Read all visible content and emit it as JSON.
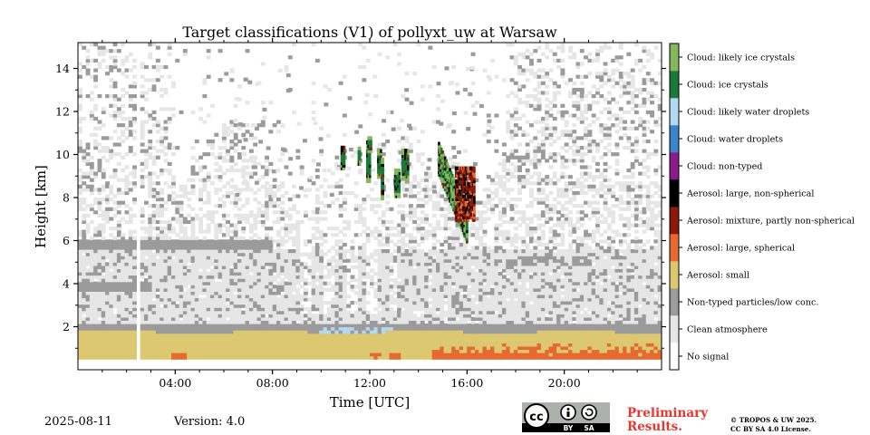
{
  "chart_data": {
    "type": "heatmap",
    "title": "Target classifications (V1) of pollyxt_uw at Warsaw",
    "xlabel": "Time [UTC]",
    "ylabel": "Height [km]",
    "xlim": [
      0,
      24
    ],
    "ylim": [
      0,
      15.2
    ],
    "x_ticks": [
      "04:00",
      "08:00",
      "12:00",
      "16:00",
      "20:00"
    ],
    "x_tick_values": [
      4,
      8,
      12,
      16,
      20
    ],
    "y_ticks": [
      "2",
      "4",
      "6",
      "8",
      "10",
      "12",
      "14"
    ],
    "y_tick_values": [
      2,
      4,
      6,
      8,
      10,
      12,
      14
    ],
    "grid": false,
    "legend_placement": "right colorbar",
    "classes": [
      {
        "label": "No signal",
        "color": "#ffffff"
      },
      {
        "label": "Clean atmosphere",
        "color": "#e6e6e6"
      },
      {
        "label": "Non-typed particles/low conc.",
        "color": "#9b9b9b"
      },
      {
        "label": "Aerosol: small",
        "color": "#dbc870"
      },
      {
        "label": "Aerosol: large, spherical",
        "color": "#e8692f"
      },
      {
        "label": "Aerosol: mixture, partly non-spherical",
        "color": "#8b1a0a"
      },
      {
        "label": "Aerosol: large, non-spherical",
        "color": "#000000"
      },
      {
        "label": "Cloud: non-typed",
        "color": "#8b1a8b"
      },
      {
        "label": "Cloud: water droplets",
        "color": "#3a86c8"
      },
      {
        "label": "Cloud: likely water droplets",
        "color": "#b2d8f2"
      },
      {
        "label": "Cloud: ice crystals",
        "color": "#1a7a3a"
      },
      {
        "label": "Cloud: likely ice crystals",
        "color": "#85b85c"
      }
    ],
    "regions": [
      {
        "class": "Aerosol: small",
        "time": [
          0,
          24
        ],
        "height": [
          0.5,
          1.8
        ]
      },
      {
        "class": "Aerosol: large, spherical",
        "time": [
          14.5,
          24
        ],
        "height": [
          0.5,
          1.1
        ]
      },
      {
        "class": "Non-typed particles/low conc.",
        "time": [
          0,
          24
        ],
        "height": [
          1.8,
          2.1
        ]
      },
      {
        "class": "Non-typed particles/low conc.",
        "time": [
          0,
          8
        ],
        "height": [
          5.6,
          6.0
        ]
      },
      {
        "class": "Non-typed particles/low conc.",
        "time": [
          0,
          3
        ],
        "height": [
          3.6,
          4.0
        ]
      },
      {
        "class": "Cloud: likely water droplets",
        "time": [
          10,
          13
        ],
        "height": [
          1.6,
          2.0
        ]
      },
      {
        "class": "Cloud: likely ice crystals",
        "time": [
          14.8,
          16.0
        ],
        "height": [
          6.5,
          10.3
        ]
      },
      {
        "class": "Aerosol: mixture, partly non-spherical",
        "time": [
          15.5,
          16.2
        ],
        "height": [
          6.8,
          9.3
        ]
      },
      {
        "class": "Cloud: ice crystals",
        "time": [
          11.8,
          13.5
        ],
        "height": [
          8.0,
          10.5
        ]
      }
    ],
    "no_signal_gaps": [
      [
        2.35,
        2.55
      ],
      [
        17.45,
        17.6
      ]
    ]
  },
  "footer": {
    "date": "2025-08-11",
    "version": "Version: 4.0",
    "preliminary": "Preliminary Results.",
    "preliminary_line1": "Preliminary",
    "preliminary_line2": "Results.",
    "copyright_line1": "© TROPOS & UW 2025.",
    "copyright_line2": "CC BY SA 4.0 License.",
    "license_badge": {
      "cc": "cc",
      "by": "BY",
      "sa": "SA"
    }
  }
}
